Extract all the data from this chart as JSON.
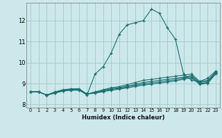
{
  "xlabel": "Humidex (Indice chaleur)",
  "bg_color": "#cce8ea",
  "grid_color": "#a0c8cc",
  "line_color": "#1a6e6e",
  "xlim": [
    -0.5,
    23.5
  ],
  "ylim": [
    7.85,
    12.85
  ],
  "xticks": [
    0,
    1,
    2,
    3,
    4,
    5,
    6,
    7,
    8,
    9,
    10,
    11,
    12,
    13,
    14,
    15,
    16,
    17,
    18,
    19,
    20,
    21,
    22,
    23
  ],
  "yticks": [
    8,
    9,
    10,
    11,
    12
  ],
  "series": [
    [
      8.6,
      8.6,
      8.45,
      8.55,
      8.65,
      8.7,
      8.7,
      8.45,
      9.45,
      9.8,
      10.45,
      11.35,
      11.8,
      11.9,
      12.0,
      12.55,
      12.35,
      11.65,
      11.1,
      9.45,
      9.15,
      9.1,
      9.25,
      9.6
    ],
    [
      8.6,
      8.6,
      8.45,
      8.6,
      8.7,
      8.75,
      8.75,
      8.5,
      8.6,
      8.7,
      8.8,
      8.85,
      8.95,
      9.05,
      9.15,
      9.2,
      9.25,
      9.3,
      9.35,
      9.4,
      9.45,
      9.1,
      9.15,
      9.55
    ],
    [
      8.6,
      8.6,
      8.45,
      8.58,
      8.68,
      8.72,
      8.72,
      8.5,
      8.58,
      8.67,
      8.75,
      8.8,
      8.88,
      8.96,
      9.05,
      9.1,
      9.15,
      9.2,
      9.25,
      9.3,
      9.38,
      9.05,
      9.1,
      9.52
    ],
    [
      8.6,
      8.6,
      8.45,
      8.56,
      8.66,
      8.7,
      8.7,
      8.5,
      8.56,
      8.64,
      8.72,
      8.77,
      8.84,
      8.91,
      8.98,
      9.03,
      9.08,
      9.13,
      9.18,
      9.26,
      9.32,
      9.0,
      9.05,
      9.49
    ],
    [
      8.6,
      8.6,
      8.45,
      8.54,
      8.64,
      8.68,
      8.68,
      8.5,
      8.54,
      8.61,
      8.68,
      8.73,
      8.79,
      8.86,
      8.92,
      8.97,
      9.02,
      9.07,
      9.12,
      9.21,
      9.27,
      8.96,
      9.01,
      9.46
    ]
  ]
}
